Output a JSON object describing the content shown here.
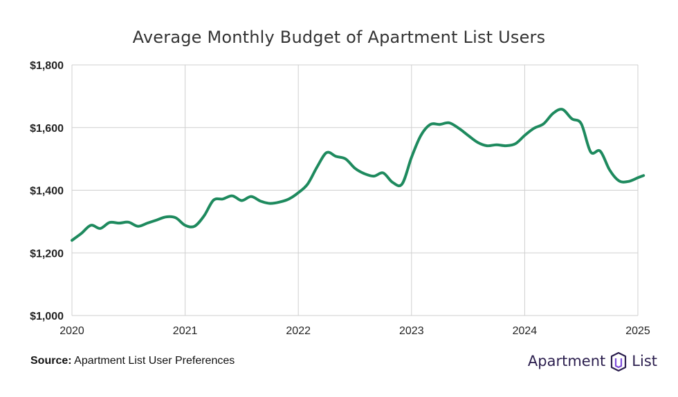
{
  "chart_data": {
    "type": "line",
    "title": "Average Monthly Budget of Apartment List Users",
    "xlabel": "",
    "ylabel": "",
    "x_ticks": [
      "2020",
      "2021",
      "2022",
      "2023",
      "2024",
      "2025"
    ],
    "y_ticks": [
      "$1,000",
      "$1,200",
      "$1,400",
      "$1,600",
      "$1,800"
    ],
    "xlim": [
      2020,
      2025
    ],
    "ylim": [
      1000,
      1800
    ],
    "grid": true,
    "series": [
      {
        "name": "Average Monthly Budget",
        "color": "#1e8a5e",
        "x": [
          2020.0,
          2020.083,
          2020.167,
          2020.25,
          2020.333,
          2020.417,
          2020.5,
          2020.583,
          2020.667,
          2020.75,
          2020.833,
          2020.917,
          2021.0,
          2021.083,
          2021.167,
          2021.25,
          2021.333,
          2021.417,
          2021.5,
          2021.583,
          2021.667,
          2021.75,
          2021.833,
          2021.917,
          2022.0,
          2022.083,
          2022.167,
          2022.25,
          2022.333,
          2022.417,
          2022.5,
          2022.583,
          2022.667,
          2022.75,
          2022.833,
          2022.917,
          2023.0,
          2023.083,
          2023.167,
          2023.25,
          2023.333,
          2023.417,
          2023.5,
          2023.583,
          2023.667,
          2023.75,
          2023.833,
          2023.917,
          2024.0,
          2024.083,
          2024.167,
          2024.25,
          2024.333,
          2024.417,
          2024.5,
          2024.583,
          2024.667,
          2024.75,
          2024.833,
          2024.917,
          2025.0,
          2025.05
        ],
        "values": [
          1240,
          1262,
          1288,
          1278,
          1297,
          1295,
          1298,
          1285,
          1295,
          1305,
          1315,
          1312,
          1288,
          1285,
          1318,
          1368,
          1372,
          1382,
          1367,
          1380,
          1365,
          1358,
          1362,
          1372,
          1392,
          1420,
          1475,
          1520,
          1508,
          1500,
          1470,
          1453,
          1445,
          1455,
          1425,
          1420,
          1505,
          1575,
          1610,
          1610,
          1615,
          1598,
          1575,
          1553,
          1542,
          1545,
          1542,
          1548,
          1575,
          1598,
          1612,
          1645,
          1658,
          1628,
          1612,
          1522,
          1525,
          1465,
          1430,
          1428,
          1440,
          1447
        ]
      }
    ]
  },
  "source": {
    "label": "Source:",
    "text": "Apartment List User Preferences"
  },
  "logo": {
    "text_left": "Apartment",
    "text_right": "List",
    "color": "#2a1d4d",
    "accent": "#7d4cdb"
  }
}
